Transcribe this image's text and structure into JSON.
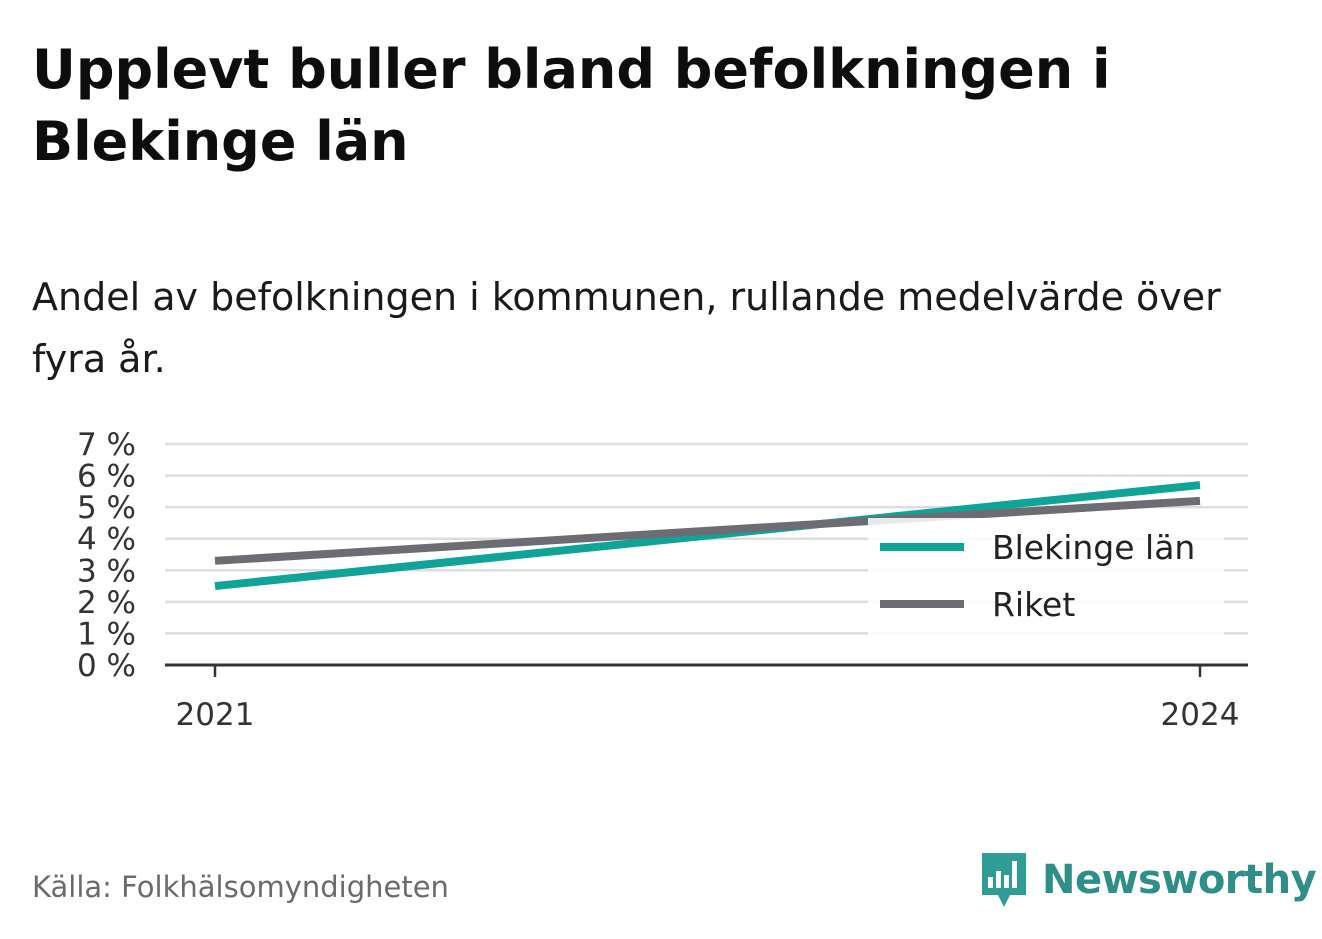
{
  "title": "Upplevt buller bland befolkningen i Blekinge län",
  "subtitle": "Andel av befolkningen i kommunen, rullande medelvärde över fyra år.",
  "source": "Källa: Folkhälsomyndigheten",
  "brand": {
    "name": "Newsworthy",
    "icon": "newsworthy-logo-icon",
    "color": "#2f9c95"
  },
  "chart_data": {
    "type": "line",
    "x": [
      "2021",
      "2024"
    ],
    "series": [
      {
        "name": "Blekinge län",
        "values": [
          2.5,
          5.7
        ],
        "color": "#10a398"
      },
      {
        "name": "Riket",
        "values": [
          3.3,
          5.2
        ],
        "color": "#6e6c73"
      }
    ],
    "y_ticks": [
      "0 %",
      "1 %",
      "2 %",
      "3 %",
      "4 %",
      "5 %",
      "6 %",
      "7 %"
    ],
    "ylim": [
      0,
      7
    ],
    "grid": true,
    "legend": "right"
  }
}
